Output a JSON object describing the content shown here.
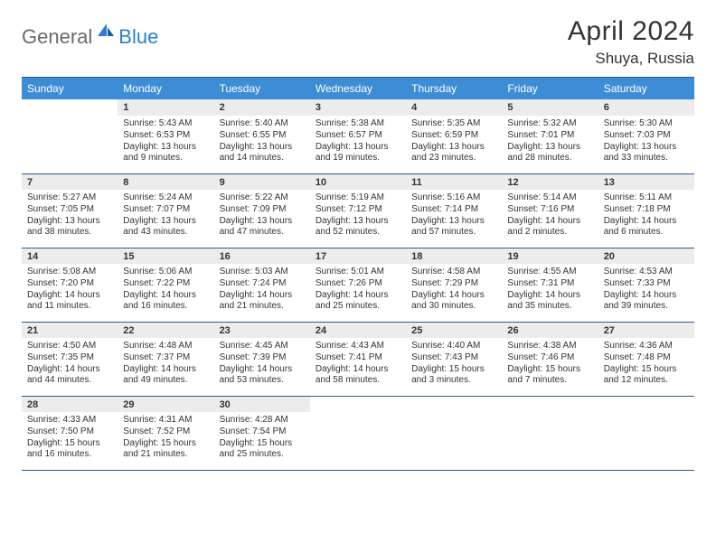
{
  "brand": {
    "general": "General",
    "blue": "Blue"
  },
  "title": "April 2024",
  "location": "Shuya, Russia",
  "colors": {
    "header_bg": "#3c8dd6",
    "header_text": "#ffffff",
    "daynum_bg": "#ececec",
    "rule": "#2a5a8f",
    "text": "#333333",
    "logo_gray": "#6a6a6a",
    "logo_blue": "#2a7fcf",
    "bg": "#ffffff"
  },
  "weekdays": [
    "Sunday",
    "Monday",
    "Tuesday",
    "Wednesday",
    "Thursday",
    "Friday",
    "Saturday"
  ],
  "weeks": [
    {
      "nums": [
        "",
        "1",
        "2",
        "3",
        "4",
        "5",
        "6"
      ],
      "cells": [
        null,
        {
          "sr": "Sunrise: 5:43 AM",
          "ss": "Sunset: 6:53 PM",
          "d1": "Daylight: 13 hours",
          "d2": "and 9 minutes."
        },
        {
          "sr": "Sunrise: 5:40 AM",
          "ss": "Sunset: 6:55 PM",
          "d1": "Daylight: 13 hours",
          "d2": "and 14 minutes."
        },
        {
          "sr": "Sunrise: 5:38 AM",
          "ss": "Sunset: 6:57 PM",
          "d1": "Daylight: 13 hours",
          "d2": "and 19 minutes."
        },
        {
          "sr": "Sunrise: 5:35 AM",
          "ss": "Sunset: 6:59 PM",
          "d1": "Daylight: 13 hours",
          "d2": "and 23 minutes."
        },
        {
          "sr": "Sunrise: 5:32 AM",
          "ss": "Sunset: 7:01 PM",
          "d1": "Daylight: 13 hours",
          "d2": "and 28 minutes."
        },
        {
          "sr": "Sunrise: 5:30 AM",
          "ss": "Sunset: 7:03 PM",
          "d1": "Daylight: 13 hours",
          "d2": "and 33 minutes."
        }
      ]
    },
    {
      "nums": [
        "7",
        "8",
        "9",
        "10",
        "11",
        "12",
        "13"
      ],
      "cells": [
        {
          "sr": "Sunrise: 5:27 AM",
          "ss": "Sunset: 7:05 PM",
          "d1": "Daylight: 13 hours",
          "d2": "and 38 minutes."
        },
        {
          "sr": "Sunrise: 5:24 AM",
          "ss": "Sunset: 7:07 PM",
          "d1": "Daylight: 13 hours",
          "d2": "and 43 minutes."
        },
        {
          "sr": "Sunrise: 5:22 AM",
          "ss": "Sunset: 7:09 PM",
          "d1": "Daylight: 13 hours",
          "d2": "and 47 minutes."
        },
        {
          "sr": "Sunrise: 5:19 AM",
          "ss": "Sunset: 7:12 PM",
          "d1": "Daylight: 13 hours",
          "d2": "and 52 minutes."
        },
        {
          "sr": "Sunrise: 5:16 AM",
          "ss": "Sunset: 7:14 PM",
          "d1": "Daylight: 13 hours",
          "d2": "and 57 minutes."
        },
        {
          "sr": "Sunrise: 5:14 AM",
          "ss": "Sunset: 7:16 PM",
          "d1": "Daylight: 14 hours",
          "d2": "and 2 minutes."
        },
        {
          "sr": "Sunrise: 5:11 AM",
          "ss": "Sunset: 7:18 PM",
          "d1": "Daylight: 14 hours",
          "d2": "and 6 minutes."
        }
      ]
    },
    {
      "nums": [
        "14",
        "15",
        "16",
        "17",
        "18",
        "19",
        "20"
      ],
      "cells": [
        {
          "sr": "Sunrise: 5:08 AM",
          "ss": "Sunset: 7:20 PM",
          "d1": "Daylight: 14 hours",
          "d2": "and 11 minutes."
        },
        {
          "sr": "Sunrise: 5:06 AM",
          "ss": "Sunset: 7:22 PM",
          "d1": "Daylight: 14 hours",
          "d2": "and 16 minutes."
        },
        {
          "sr": "Sunrise: 5:03 AM",
          "ss": "Sunset: 7:24 PM",
          "d1": "Daylight: 14 hours",
          "d2": "and 21 minutes."
        },
        {
          "sr": "Sunrise: 5:01 AM",
          "ss": "Sunset: 7:26 PM",
          "d1": "Daylight: 14 hours",
          "d2": "and 25 minutes."
        },
        {
          "sr": "Sunrise: 4:58 AM",
          "ss": "Sunset: 7:29 PM",
          "d1": "Daylight: 14 hours",
          "d2": "and 30 minutes."
        },
        {
          "sr": "Sunrise: 4:55 AM",
          "ss": "Sunset: 7:31 PM",
          "d1": "Daylight: 14 hours",
          "d2": "and 35 minutes."
        },
        {
          "sr": "Sunrise: 4:53 AM",
          "ss": "Sunset: 7:33 PM",
          "d1": "Daylight: 14 hours",
          "d2": "and 39 minutes."
        }
      ]
    },
    {
      "nums": [
        "21",
        "22",
        "23",
        "24",
        "25",
        "26",
        "27"
      ],
      "cells": [
        {
          "sr": "Sunrise: 4:50 AM",
          "ss": "Sunset: 7:35 PM",
          "d1": "Daylight: 14 hours",
          "d2": "and 44 minutes."
        },
        {
          "sr": "Sunrise: 4:48 AM",
          "ss": "Sunset: 7:37 PM",
          "d1": "Daylight: 14 hours",
          "d2": "and 49 minutes."
        },
        {
          "sr": "Sunrise: 4:45 AM",
          "ss": "Sunset: 7:39 PM",
          "d1": "Daylight: 14 hours",
          "d2": "and 53 minutes."
        },
        {
          "sr": "Sunrise: 4:43 AM",
          "ss": "Sunset: 7:41 PM",
          "d1": "Daylight: 14 hours",
          "d2": "and 58 minutes."
        },
        {
          "sr": "Sunrise: 4:40 AM",
          "ss": "Sunset: 7:43 PM",
          "d1": "Daylight: 15 hours",
          "d2": "and 3 minutes."
        },
        {
          "sr": "Sunrise: 4:38 AM",
          "ss": "Sunset: 7:46 PM",
          "d1": "Daylight: 15 hours",
          "d2": "and 7 minutes."
        },
        {
          "sr": "Sunrise: 4:36 AM",
          "ss": "Sunset: 7:48 PM",
          "d1": "Daylight: 15 hours",
          "d2": "and 12 minutes."
        }
      ]
    },
    {
      "nums": [
        "28",
        "29",
        "30",
        "",
        "",
        "",
        ""
      ],
      "cells": [
        {
          "sr": "Sunrise: 4:33 AM",
          "ss": "Sunset: 7:50 PM",
          "d1": "Daylight: 15 hours",
          "d2": "and 16 minutes."
        },
        {
          "sr": "Sunrise: 4:31 AM",
          "ss": "Sunset: 7:52 PM",
          "d1": "Daylight: 15 hours",
          "d2": "and 21 minutes."
        },
        {
          "sr": "Sunrise: 4:28 AM",
          "ss": "Sunset: 7:54 PM",
          "d1": "Daylight: 15 hours",
          "d2": "and 25 minutes."
        },
        null,
        null,
        null,
        null
      ]
    }
  ]
}
